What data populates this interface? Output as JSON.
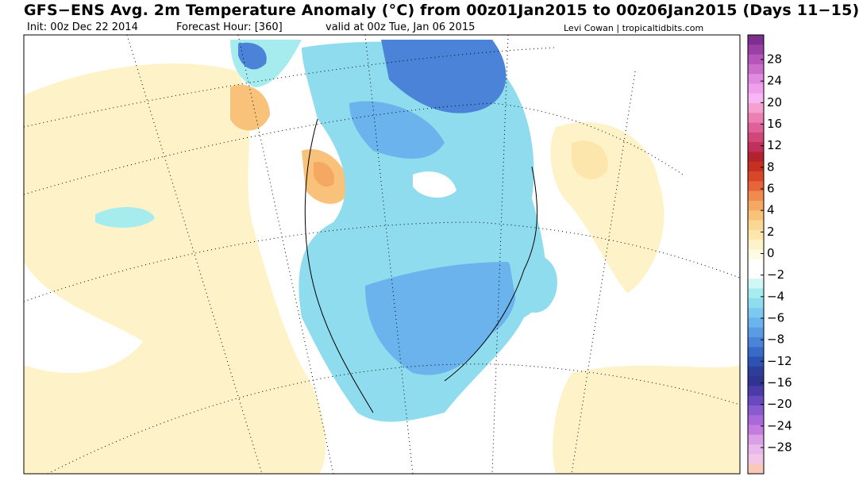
{
  "header": {
    "title": "GFS−ENS Avg. 2m Temperature Anomaly (°C) from 00z01Jan2015 to 00z06Jan2015 (Days 11−15)",
    "init": "Init: 00z Dec 22 2014",
    "forecast_hour": "Forecast Hour: [360]",
    "valid": "valid at 00z Tue, Jan 06 2015",
    "credit": "Levi Cowan | tropicaltidbits.com"
  },
  "colorbar": {
    "labels": [
      "28",
      "24",
      "20",
      "16",
      "12",
      "8",
      "6",
      "4",
      "2",
      "0",
      "−2",
      "−4",
      "−6",
      "−8",
      "−12",
      "−16",
      "−20",
      "−24",
      "−28"
    ],
    "colors": [
      "#7d2e8e",
      "#9a3fa5",
      "#b655bb",
      "#cc6dcc",
      "#e08be0",
      "#ef9fee",
      "#f7b6f4",
      "#f5a0d0",
      "#ec80b4",
      "#e0609a",
      "#d04778",
      "#c0305a",
      "#b5222f",
      "#c53020",
      "#d9472a",
      "#e8643a",
      "#f08a4e",
      "#f4a862",
      "#f8c27a",
      "#fad793",
      "#fde6ab",
      "#fef3c8",
      "#fffbe3",
      "#ffffff",
      "#ffffff",
      "#cff7f5",
      "#a6ecef",
      "#8fdcef",
      "#7dc8f0",
      "#6ab3ec",
      "#5a9be3",
      "#4a83d8",
      "#3a6ac8",
      "#2d52b3",
      "#2c3e98",
      "#2f3392",
      "#4b3aa8",
      "#6a49bf",
      "#8a5ad0",
      "#a86ad8",
      "#c57ce0",
      "#d9a0e6",
      "#e8b8ec",
      "#f3c5e6",
      "#f8c8b8"
    ]
  }
}
